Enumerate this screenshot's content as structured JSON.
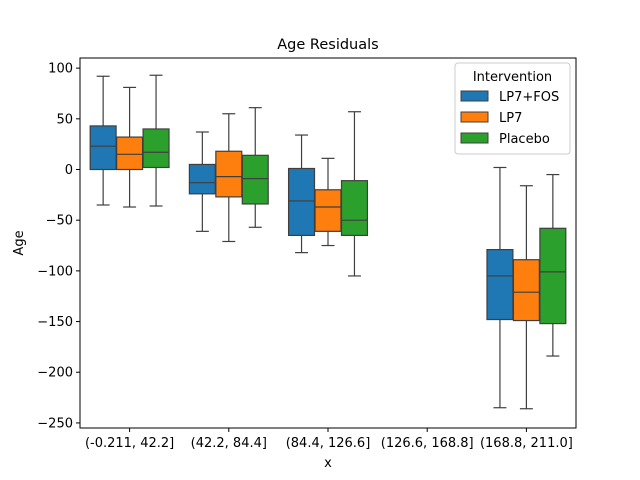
{
  "chart_data": {
    "type": "box",
    "title": "Age Residuals",
    "xlabel": "x",
    "ylabel": "Age",
    "ylim": [
      -255,
      110
    ],
    "yticks": [
      100,
      50,
      0,
      -50,
      -100,
      -150,
      -200,
      -250
    ],
    "ytick_labels": [
      "100",
      "50",
      "0",
      "−50",
      "−100",
      "−150",
      "−200",
      "−250"
    ],
    "categories": [
      "(-0.211, 42.2]",
      "(42.2, 84.4]",
      "(84.4, 126.6]",
      "(126.6, 168.8]",
      "(168.8, 211.0]"
    ],
    "legend": {
      "title": "Intervention",
      "placement": "top-right"
    },
    "series": [
      {
        "name": "LP7+FOS",
        "color": "#1f77b4",
        "boxes": [
          {
            "category": 0,
            "whislo": -35,
            "q1": 0,
            "med": 23,
            "q3": 43,
            "whishi": 92
          },
          {
            "category": 1,
            "whislo": -61,
            "q1": -24,
            "med": -13,
            "q3": 5,
            "whishi": 37
          },
          {
            "category": 2,
            "whislo": -82,
            "q1": -65,
            "med": -31,
            "q3": 1,
            "whishi": 34
          },
          {
            "category": 3,
            "empty": true
          },
          {
            "category": 4,
            "whislo": -235,
            "q1": -148,
            "med": -105,
            "q3": -79,
            "whishi": 2
          }
        ]
      },
      {
        "name": "LP7",
        "color": "#ff7f0e",
        "boxes": [
          {
            "category": 0,
            "whislo": -37,
            "q1": 0,
            "med": 15,
            "q3": 32,
            "whishi": 81
          },
          {
            "category": 1,
            "whislo": -71,
            "q1": -27,
            "med": -7,
            "q3": 18,
            "whishi": 55
          },
          {
            "category": 2,
            "whislo": -75,
            "q1": -61,
            "med": -37,
            "q3": -20,
            "whishi": 11
          },
          {
            "category": 3,
            "empty": true
          },
          {
            "category": 4,
            "whislo": -236,
            "q1": -149,
            "med": -121,
            "q3": -89,
            "whishi": -16
          }
        ]
      },
      {
        "name": "Placebo",
        "color": "#2ca02c",
        "boxes": [
          {
            "category": 0,
            "whislo": -36,
            "q1": 2,
            "med": 17,
            "q3": 40,
            "whishi": 93
          },
          {
            "category": 1,
            "whislo": -57,
            "q1": -34,
            "med": -9,
            "q3": 14,
            "whishi": 61
          },
          {
            "category": 2,
            "whislo": -105,
            "q1": -65,
            "med": -50,
            "q3": -11,
            "whishi": 57
          },
          {
            "category": 3,
            "empty": true
          },
          {
            "category": 4,
            "whislo": -184,
            "q1": -152,
            "med": -101,
            "q3": -58,
            "whishi": -5
          }
        ]
      }
    ]
  }
}
